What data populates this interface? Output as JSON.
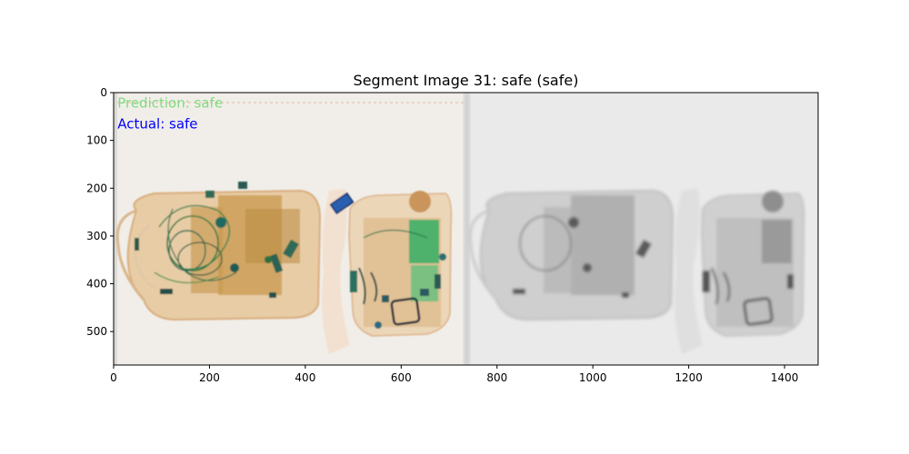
{
  "chart_data": {
    "type": "image",
    "title": "Segment Image 31: safe (safe)",
    "xlim": [
      0,
      1470
    ],
    "ylim": [
      570,
      0
    ],
    "x_ticks": [
      0,
      200,
      400,
      600,
      800,
      1000,
      1200,
      1400
    ],
    "y_ticks": [
      0,
      100,
      200,
      300,
      400,
      500
    ],
    "annotations": [
      {
        "text": "Prediction: safe",
        "x": 8,
        "y": 22,
        "color": "#7fdc7f"
      },
      {
        "text": "Actual: safe",
        "x": 8,
        "y": 66,
        "color": "#0000ff"
      }
    ],
    "panels": [
      {
        "name": "xray-color",
        "x_range": [
          0,
          735
        ],
        "background": "#f0ede8"
      },
      {
        "name": "xray-grayscale",
        "x_range": [
          735,
          1470
        ],
        "background": "#e9e9e9"
      }
    ]
  }
}
